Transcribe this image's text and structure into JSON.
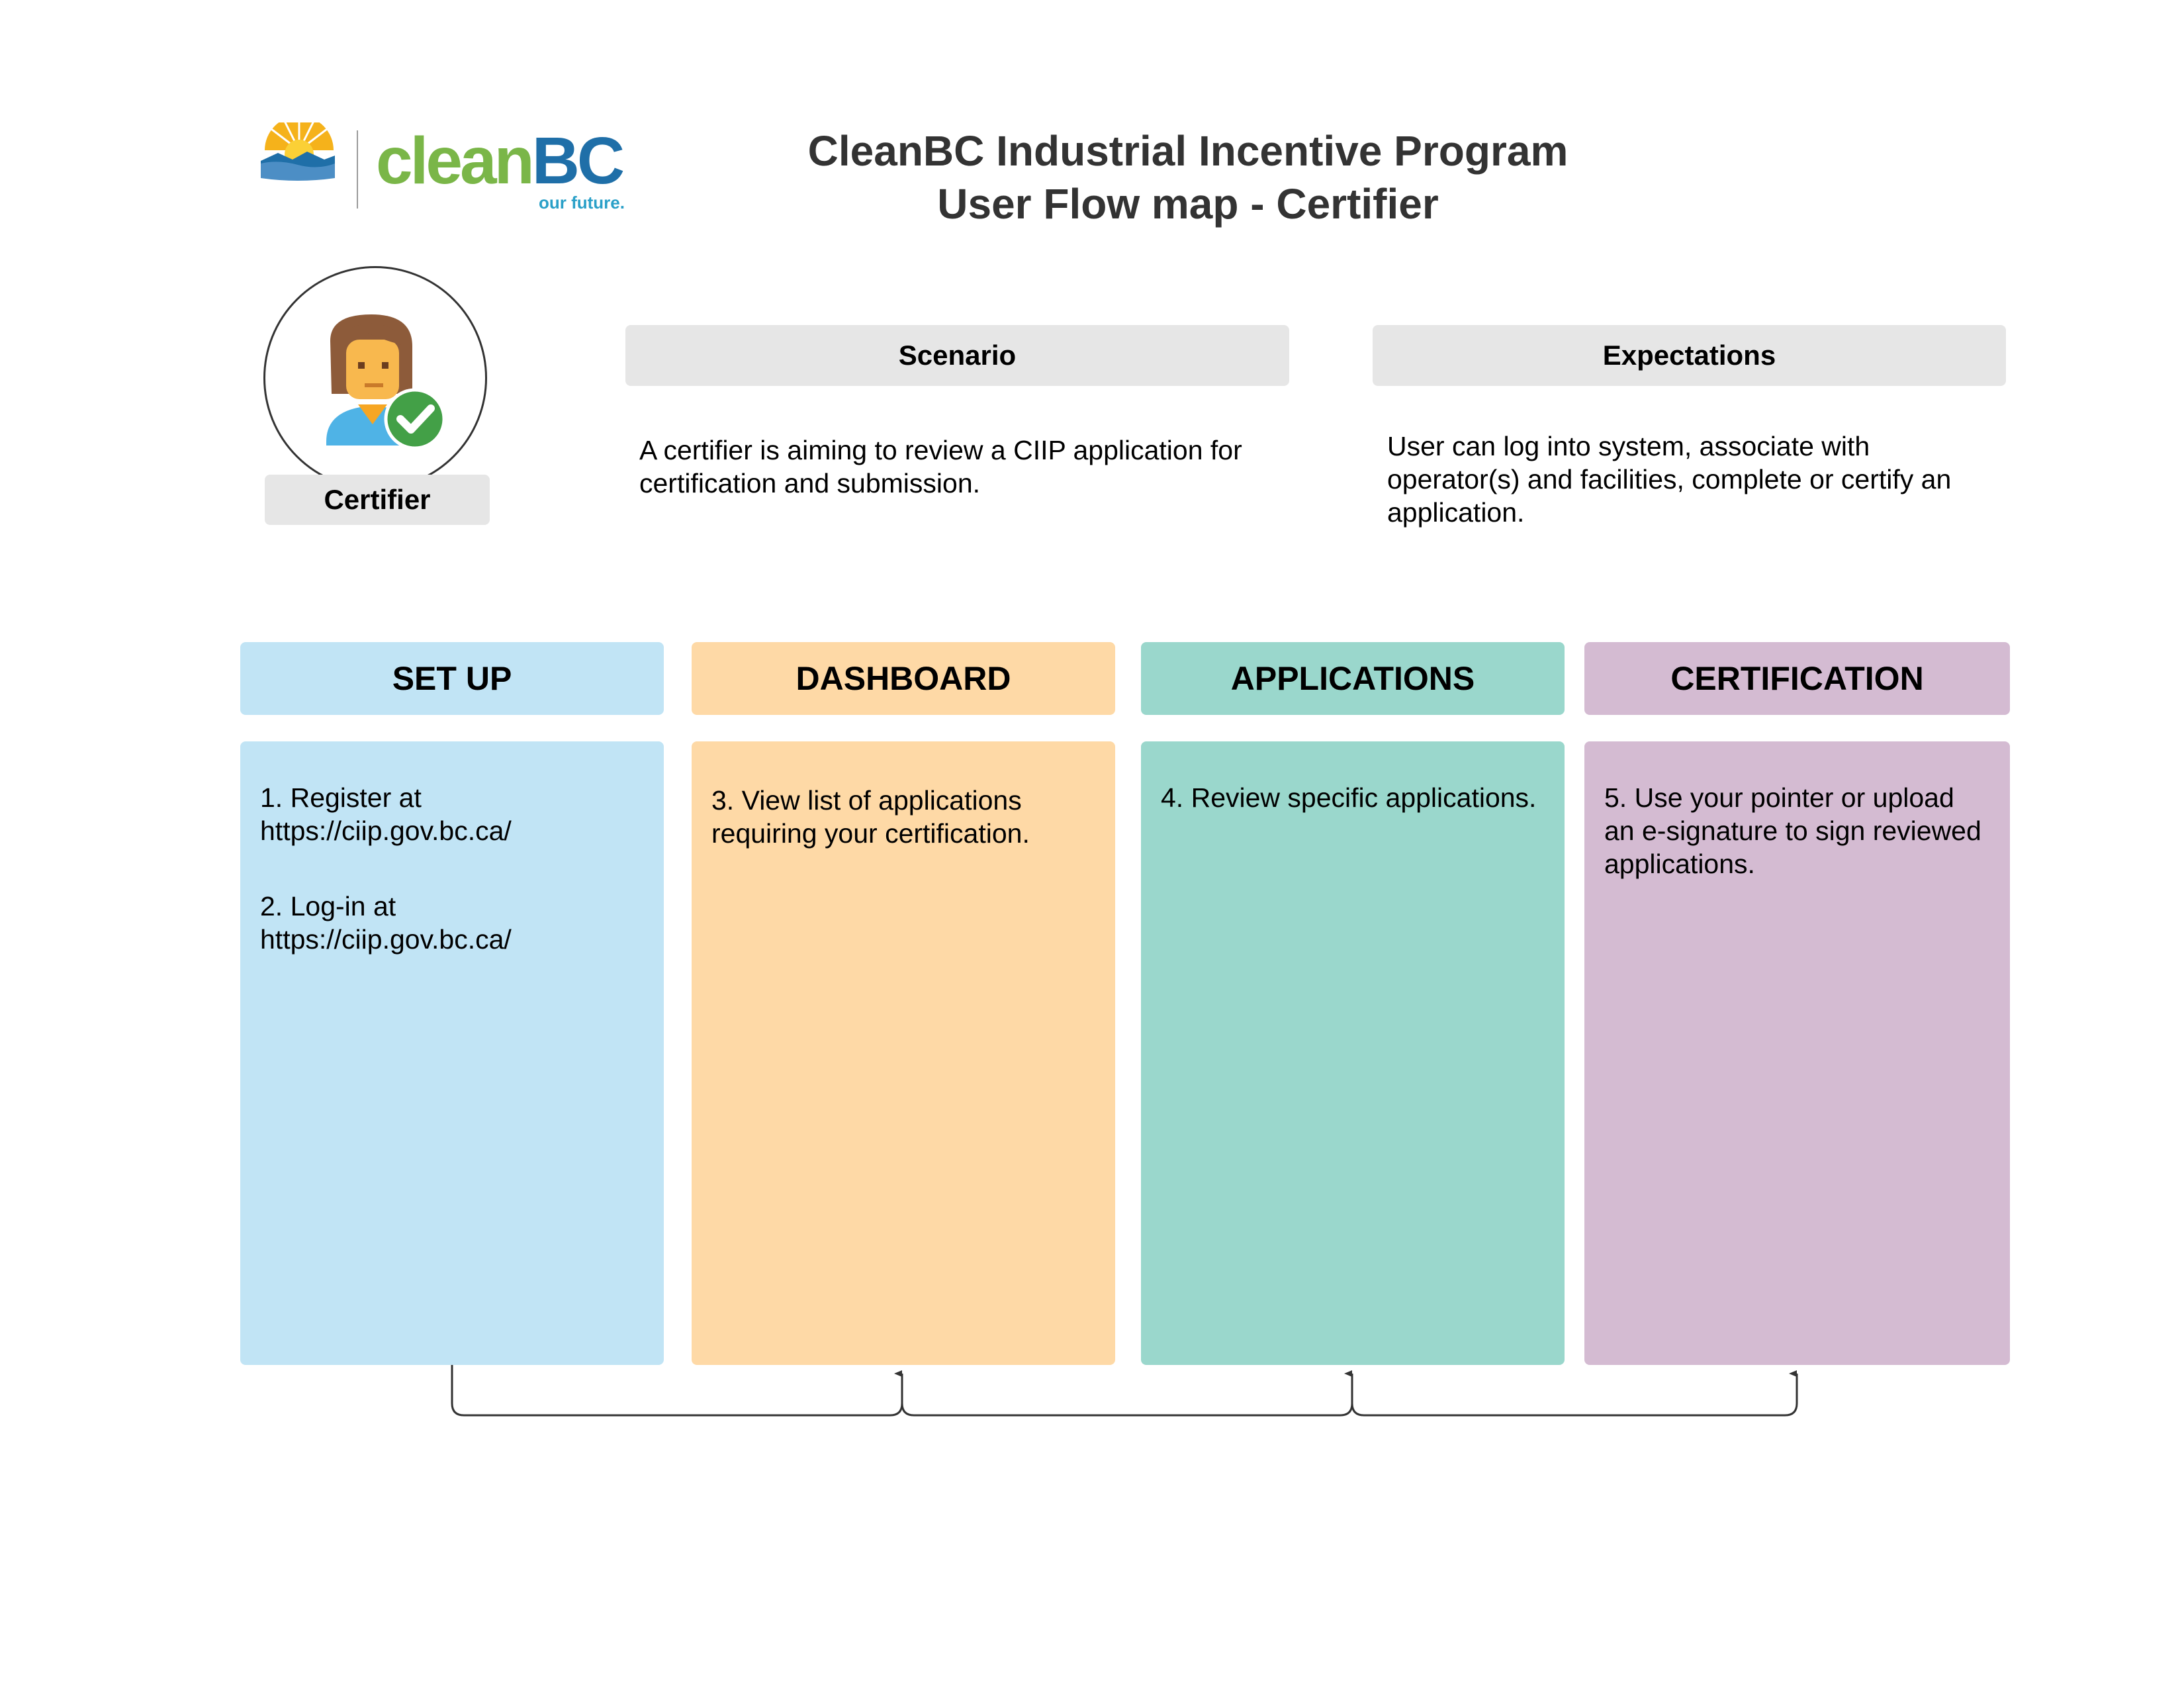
{
  "header": {
    "logo_text_clean": "clean",
    "logo_text_bc": "BC",
    "logo_tagline": "our future.",
    "title_line1": "CleanBC Industrial Incentive Program",
    "title_line2": "User Flow map - Certifier"
  },
  "persona": {
    "label": "Certifier",
    "icon": "certifier-avatar-with-check"
  },
  "scenario": {
    "heading": "Scenario",
    "text": "A certifier is aiming to review a CIIP application for certification and submission."
  },
  "expectations": {
    "heading": "Expectations",
    "text": "User can log into system, associate with operator(s) and facilities, complete or certify an application."
  },
  "stages": [
    {
      "title": "SET UP",
      "color": "#c1e4f5",
      "steps": [
        "1. Register at https://ciip.gov.bc.ca/",
        "2. Log-in at https://ciip.gov.bc.ca/"
      ]
    },
    {
      "title": "DASHBOARD",
      "color": "#fed9a6",
      "steps": [
        "3. View list of applications requiring your certification."
      ]
    },
    {
      "title": "APPLICATIONS",
      "color": "#9ad7cc",
      "steps": [
        "4. Review specific applications."
      ]
    },
    {
      "title": "CERTIFICATION",
      "color": "#d4bbd2",
      "steps": [
        "5. Use your pointer or upload an e-signature to sign reviewed applications."
      ]
    }
  ],
  "colors": {
    "logo_green": "#7ab648",
    "logo_blue": "#1f6fa8",
    "tagline_blue": "#2aa0c8",
    "check_green": "#43a047",
    "title_text": "#333333"
  }
}
